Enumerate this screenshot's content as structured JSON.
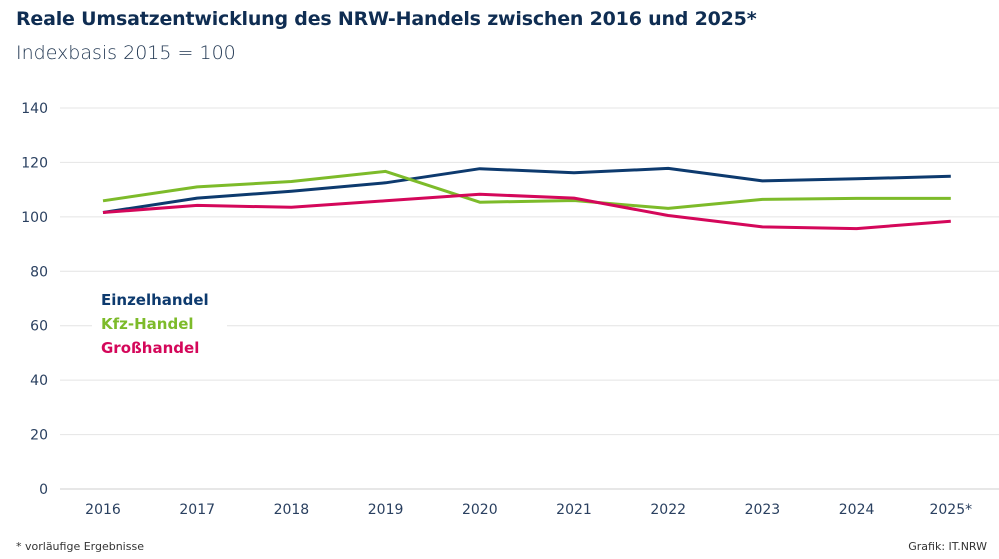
{
  "chart_data": {
    "type": "line",
    "title": "Reale Umsatzentwicklung des NRW-Handels zwischen 2016 und 2025*",
    "subtitle": "Indexbasis 2015 = 100",
    "categories": [
      "2016",
      "2017",
      "2018",
      "2019",
      "2020",
      "2021",
      "2022",
      "2023",
      "2024",
      "2025*"
    ],
    "ylim": [
      0,
      140
    ],
    "yticks": [
      0,
      20,
      40,
      60,
      80,
      100,
      120,
      140
    ],
    "grid": true,
    "legend_placement": "middle-left",
    "series": [
      {
        "name": "Einzelhandel",
        "color": "#0d3a6e",
        "values": [
          101.6,
          106.9,
          109.4,
          112.5,
          117.7,
          116.2,
          117.8,
          113.2,
          114.0,
          114.9
        ]
      },
      {
        "name": "Kfz-Handel",
        "color": "#7dbb2a",
        "values": [
          105.9,
          111.0,
          113.0,
          116.7,
          105.4,
          106.0,
          103.1,
          106.4,
          106.8,
          106.8
        ]
      },
      {
        "name": "Großhandel",
        "color": "#d4075a",
        "values": [
          101.6,
          104.2,
          103.5,
          105.9,
          108.3,
          106.9,
          100.5,
          96.3,
          95.7,
          98.4
        ]
      }
    ]
  },
  "footer": {
    "note": "* vorläufige Ergebnisse",
    "source": "Grafik: IT.NRW"
  }
}
